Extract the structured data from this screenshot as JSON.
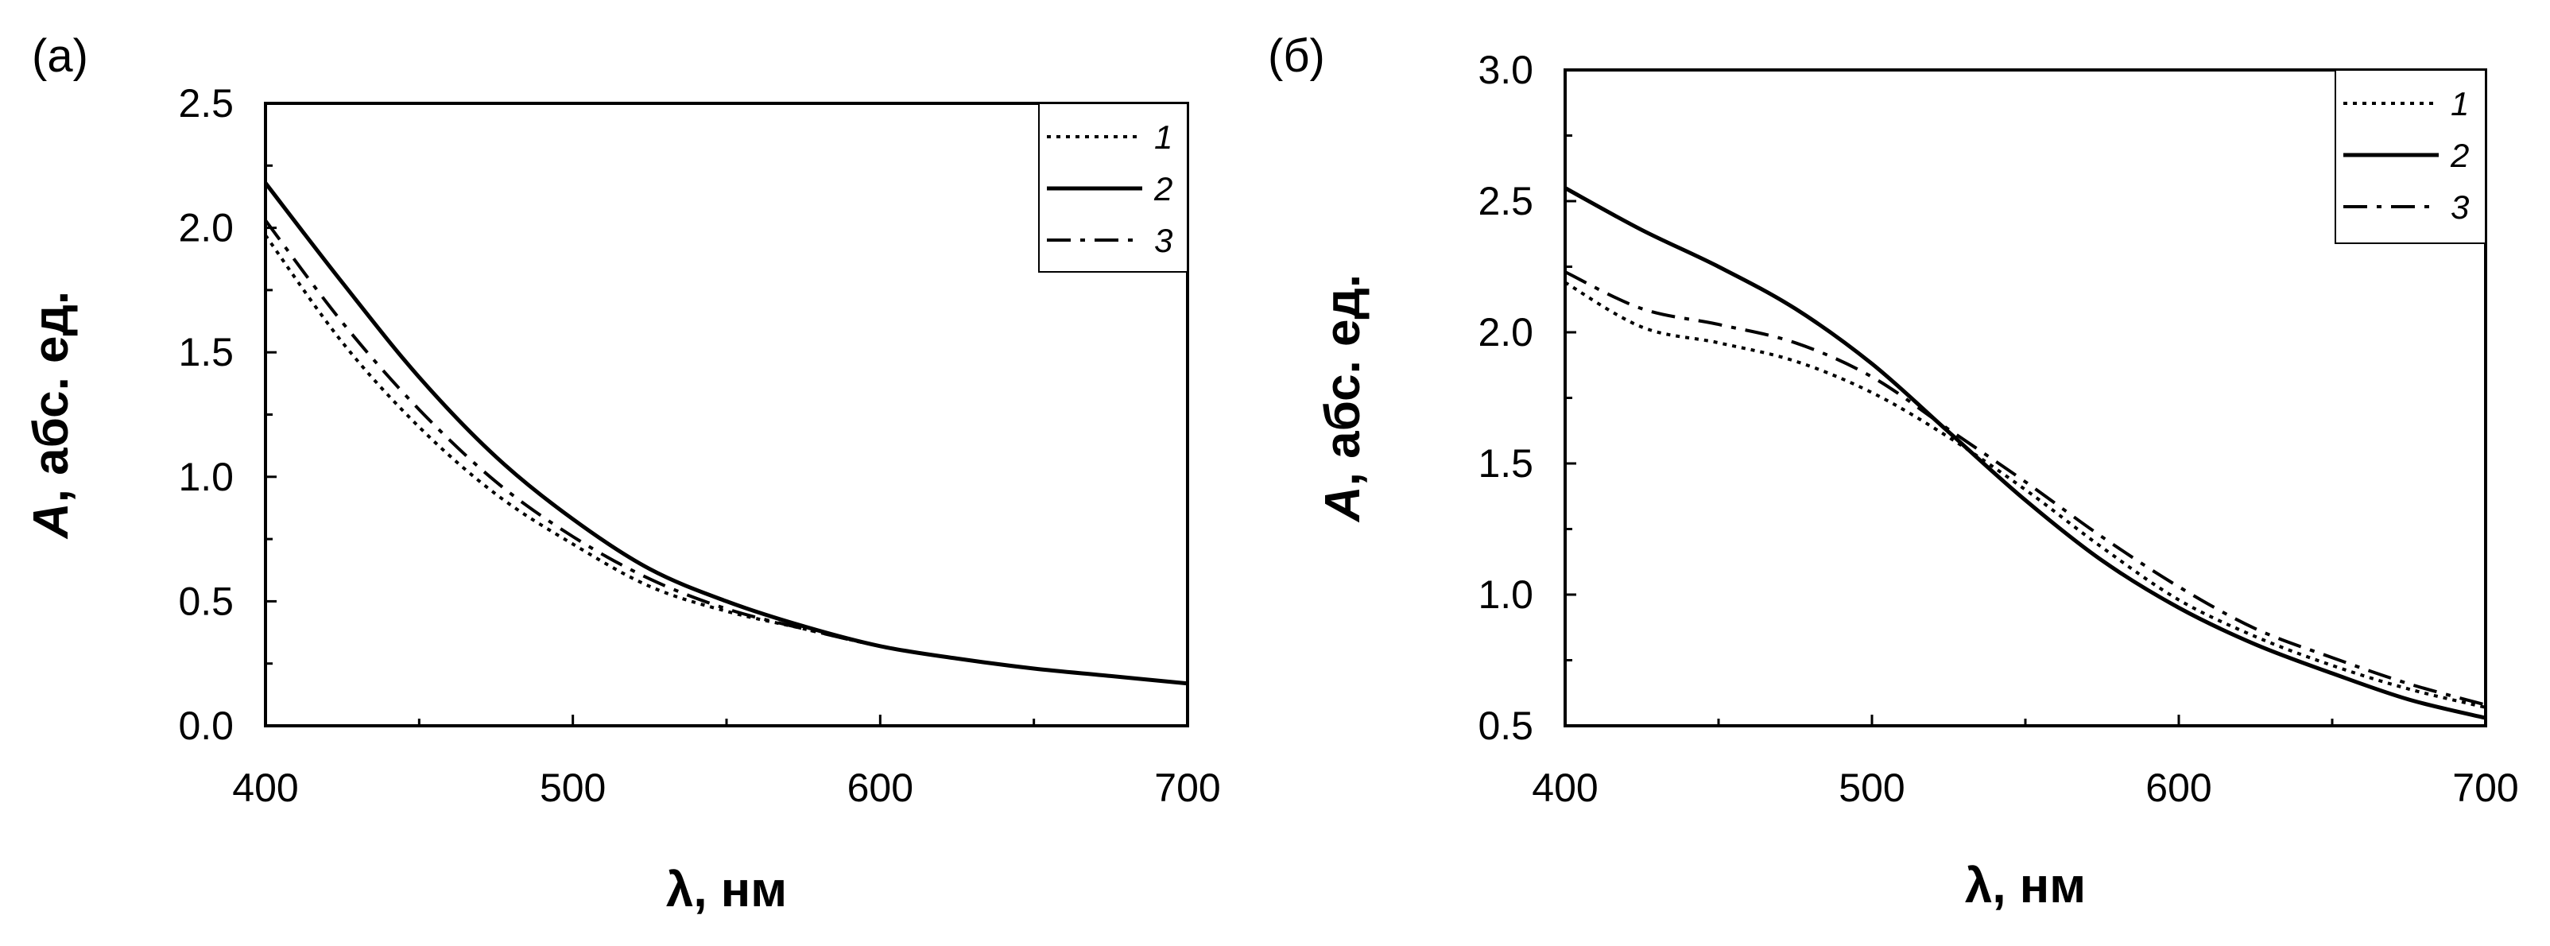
{
  "chart_data": [
    {
      "type": "line",
      "panel_label": "(a)",
      "xlabel": "λ, нм",
      "ylabel": "A, абс. ед.",
      "xlim": [
        400,
        700
      ],
      "ylim": [
        0,
        2.5
      ],
      "x_ticks": [
        "400",
        "500",
        "600",
        "700"
      ],
      "y_ticks": [
        "0.0",
        "0.5",
        "1.0",
        "1.5",
        "2.0",
        "2.5"
      ],
      "legend_position": "top-right",
      "series": [
        {
          "name": "1",
          "style": "dotted",
          "x": [
            400,
            425,
            450,
            475,
            500,
            525,
            550,
            575,
            600,
            625,
            650,
            675,
            700
          ],
          "y": [
            1.97,
            1.54,
            1.2,
            0.93,
            0.73,
            0.56,
            0.46,
            0.39,
            0.32,
            0.27,
            0.23,
            0.2,
            0.17
          ]
        },
        {
          "name": "2",
          "style": "solid",
          "x": [
            400,
            425,
            450,
            475,
            500,
            525,
            550,
            575,
            600,
            625,
            650,
            675,
            700
          ],
          "y": [
            2.18,
            1.78,
            1.4,
            1.08,
            0.83,
            0.63,
            0.5,
            0.4,
            0.32,
            0.27,
            0.23,
            0.2,
            0.17
          ]
        },
        {
          "name": "3",
          "style": "dash-dot",
          "x": [
            400,
            425,
            450,
            475,
            500,
            525,
            550,
            575,
            600,
            625,
            650,
            675,
            700
          ],
          "y": [
            2.03,
            1.62,
            1.27,
            0.98,
            0.76,
            0.59,
            0.47,
            0.39,
            0.32,
            0.27,
            0.23,
            0.2,
            0.17
          ]
        }
      ]
    },
    {
      "type": "line",
      "panel_label": "(б)",
      "xlabel": "λ, нм",
      "ylabel": "A, абс. ед.",
      "xlim": [
        400,
        700
      ],
      "ylim": [
        0.5,
        3.0
      ],
      "x_ticks": [
        "400",
        "500",
        "600",
        "700"
      ],
      "y_ticks": [
        "0.5",
        "1.0",
        "1.5",
        "2.0",
        "2.5",
        "3.0"
      ],
      "legend_position": "top-right",
      "series": [
        {
          "name": "1",
          "style": "dotted",
          "x": [
            400,
            425,
            450,
            475,
            500,
            525,
            550,
            575,
            600,
            625,
            650,
            675,
            700
          ],
          "y": [
            2.19,
            2.02,
            1.96,
            1.89,
            1.77,
            1.6,
            1.4,
            1.18,
            0.98,
            0.84,
            0.73,
            0.64,
            0.57
          ]
        },
        {
          "name": "2",
          "style": "solid",
          "x": [
            400,
            425,
            450,
            475,
            500,
            525,
            550,
            575,
            600,
            625,
            650,
            675,
            700
          ],
          "y": [
            2.55,
            2.39,
            2.25,
            2.09,
            1.88,
            1.62,
            1.36,
            1.13,
            0.95,
            0.81,
            0.7,
            0.6,
            0.53
          ]
        },
        {
          "name": "3",
          "style": "dash-dot",
          "x": [
            400,
            425,
            450,
            475,
            500,
            525,
            550,
            575,
            600,
            625,
            650,
            675,
            700
          ],
          "y": [
            2.23,
            2.09,
            2.03,
            1.96,
            1.83,
            1.63,
            1.43,
            1.22,
            1.03,
            0.87,
            0.76,
            0.66,
            0.58
          ]
        }
      ]
    }
  ]
}
